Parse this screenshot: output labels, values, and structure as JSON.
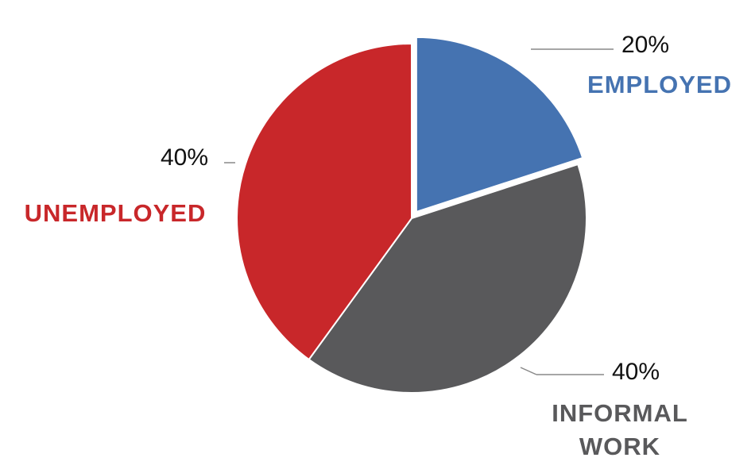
{
  "chart_data": {
    "type": "pie",
    "categories": [
      "EMPLOYED",
      "INFORMAL WORK",
      "UNEMPLOYED"
    ],
    "values": [
      20,
      40,
      40
    ],
    "value_labels": [
      "20%",
      "40%",
      "40%"
    ],
    "colors": [
      "#4573b1",
      "#59595b",
      "#c8272a"
    ]
  }
}
